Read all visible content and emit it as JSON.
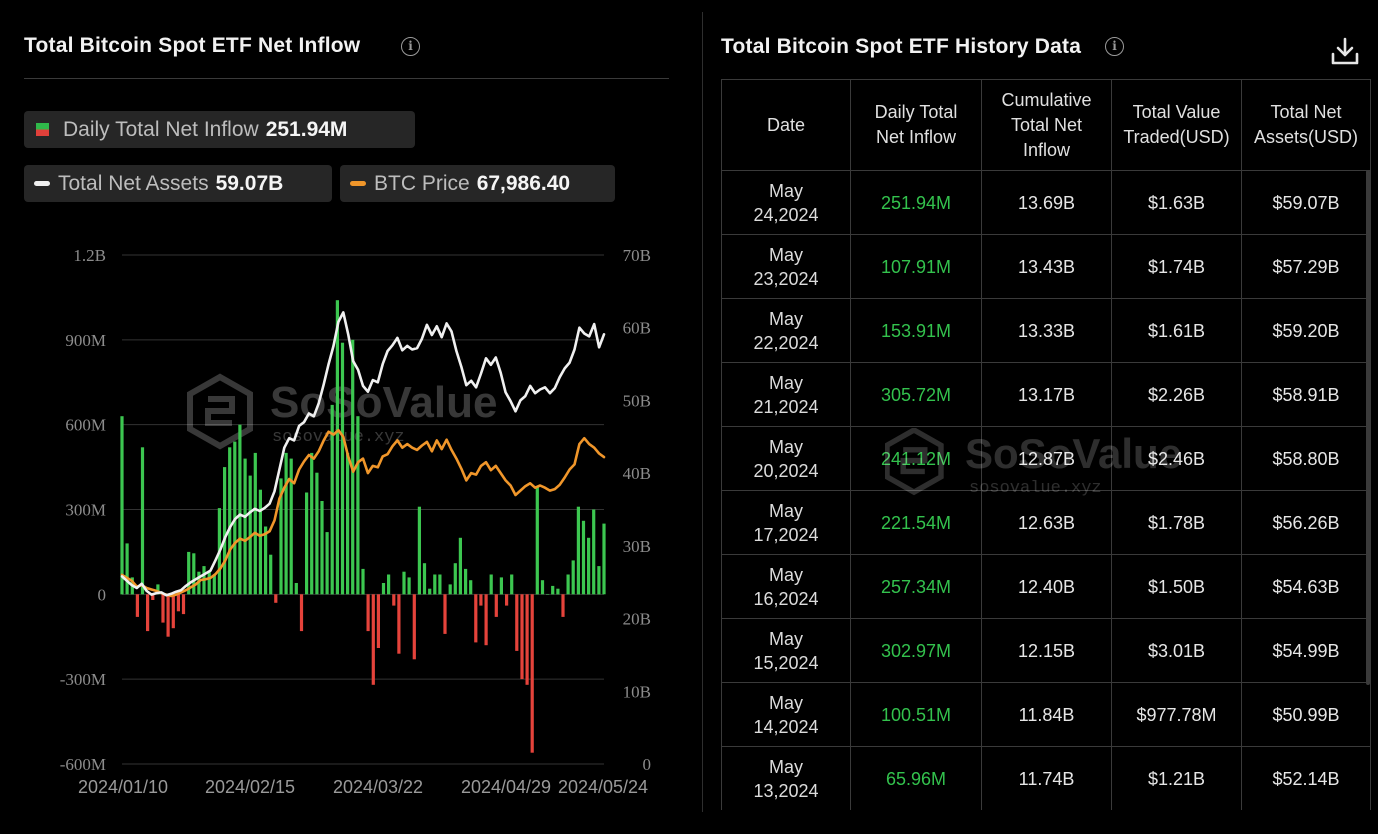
{
  "left_panel": {
    "title": "Total Bitcoin Spot ETF Net Inflow",
    "legend": {
      "inflow_label": "Daily Total Net Inflow",
      "inflow_value": "251.94M",
      "assets_label": "Total Net Assets",
      "assets_value": "59.07B",
      "btc_label": "BTC Price",
      "btc_value": "67,986.40"
    },
    "watermark": {
      "brand": "SoSoValue",
      "domain": "sosovalue.xyz"
    }
  },
  "right_panel": {
    "title": "Total Bitcoin Spot ETF History Data",
    "download_icon": "download-icon",
    "columns": [
      "Date",
      "Daily Total Net Inflow",
      "Cumulative Total Net Inflow",
      "Total Value Traded(USD)",
      "Total Net Assets(USD)"
    ],
    "rows": [
      {
        "date": "May 24,2024",
        "inflow": "251.94M",
        "cumulative": "13.69B",
        "traded": "$1.63B",
        "assets": "$59.07B"
      },
      {
        "date": "May 23,2024",
        "inflow": "107.91M",
        "cumulative": "13.43B",
        "traded": "$1.74B",
        "assets": "$57.29B"
      },
      {
        "date": "May 22,2024",
        "inflow": "153.91M",
        "cumulative": "13.33B",
        "traded": "$1.61B",
        "assets": "$59.20B"
      },
      {
        "date": "May 21,2024",
        "inflow": "305.72M",
        "cumulative": "13.17B",
        "traded": "$2.26B",
        "assets": "$58.91B"
      },
      {
        "date": "May 20,2024",
        "inflow": "241.12M",
        "cumulative": "12.87B",
        "traded": "$2.46B",
        "assets": "$58.80B"
      },
      {
        "date": "May 17,2024",
        "inflow": "221.54M",
        "cumulative": "12.63B",
        "traded": "$1.78B",
        "assets": "$56.26B"
      },
      {
        "date": "May 16,2024",
        "inflow": "257.34M",
        "cumulative": "12.40B",
        "traded": "$1.50B",
        "assets": "$54.63B"
      },
      {
        "date": "May 15,2024",
        "inflow": "302.97M",
        "cumulative": "12.15B",
        "traded": "$3.01B",
        "assets": "$54.99B"
      },
      {
        "date": "May 14,2024",
        "inflow": "100.51M",
        "cumulative": "11.84B",
        "traded": "$977.78M",
        "assets": "$50.99B"
      },
      {
        "date": "May 13,2024",
        "inflow": "65.96M",
        "cumulative": "11.74B",
        "traded": "$1.21B",
        "assets": "$52.14B"
      }
    ]
  },
  "colors": {
    "inflow_positive": "#3cc650",
    "inflow_negative": "#e5433b",
    "assets_line": "#f0f0f0",
    "btc_line": "#f0962a",
    "table_green": "#33c24d"
  },
  "chart_data": {
    "type": "bar",
    "title": "Total Bitcoin Spot ETF Net Inflow",
    "grid": true,
    "x_tick_labels": [
      "2024/01/10",
      "2024/02/15",
      "2024/03/22",
      "2024/04/29",
      "2024/05/24"
    ],
    "left_axis": {
      "ticks": [
        "1.2B",
        "900M",
        "600M",
        "300M",
        "0",
        "-300M",
        "-600M"
      ],
      "range": [
        -600,
        1200
      ],
      "unit": "M USD"
    },
    "right_axis": {
      "ticks": [
        "70B",
        "60B",
        "50B",
        "40B",
        "30B",
        "20B",
        "10B",
        "0"
      ],
      "range": [
        0,
        70
      ],
      "unit": "B USD"
    },
    "series": [
      {
        "name": "Daily Total Net Inflow",
        "type": "bar",
        "axis": "left",
        "values": [
          630,
          180,
          60,
          -80,
          520,
          -130,
          -20,
          35,
          -100,
          -150,
          -120,
          -60,
          -70,
          150,
          145,
          80,
          100,
          80,
          70,
          305,
          450,
          520,
          540,
          600,
          480,
          420,
          500,
          370,
          240,
          140,
          -30,
          410,
          500,
          480,
          40,
          -130,
          360,
          500,
          430,
          330,
          220,
          670,
          1040,
          890,
          500,
          900,
          630,
          90,
          -130,
          -320,
          -190,
          40,
          70,
          -40,
          -210,
          80,
          60,
          -230,
          310,
          110,
          20,
          70,
          70,
          -140,
          35,
          110,
          200,
          90,
          50,
          -170,
          -40,
          -180,
          70,
          -80,
          60,
          -40,
          70,
          -200,
          -300,
          -320,
          -560,
          380,
          50,
          0,
          30,
          20,
          -80,
          70,
          120,
          310,
          260,
          200,
          300,
          100,
          250
        ]
      },
      {
        "name": "Total Net Assets",
        "type": "line",
        "axis": "right",
        "values": [
          25.8,
          25.2,
          24.6,
          24.2,
          24.8,
          23.8,
          23.3,
          23.5,
          23.6,
          23.2,
          23.4,
          23.7,
          23.9,
          24.5,
          25.0,
          25.4,
          25.8,
          26.2,
          26.6,
          28.0,
          29.5,
          31.2,
          32.6,
          33.7,
          34.3,
          34.0,
          34.6,
          35.1,
          34.8,
          35.2,
          35.8,
          37.5,
          40.5,
          43.5,
          44.8,
          44.5,
          46.5,
          47.0,
          48.2,
          47.8,
          49.6,
          52.2,
          55.0,
          57.5,
          60.8,
          62.1,
          59.1,
          55.4,
          54.2,
          52.0,
          51.2,
          52.8,
          52.5,
          55.0,
          56.8,
          57.6,
          58.6,
          56.9,
          57.5,
          57.0,
          57.2,
          58.5,
          60.4,
          59.0,
          60.2,
          58.7,
          60.6,
          59.5,
          56.8,
          54.6,
          52.1,
          52.7,
          51.8,
          53.7,
          55.8,
          54.9,
          55.9,
          53.8,
          51.1,
          49.9,
          48.5,
          50.0,
          50.6,
          52.0,
          51.0,
          51.5,
          51.8,
          51.0,
          51.7,
          53.2,
          54.4,
          55.2,
          57.0,
          60.0,
          59.2,
          58.8,
          60.5,
          57.3,
          59.1
        ]
      },
      {
        "name": "BTC Price",
        "type": "line",
        "axis": "right",
        "values": [
          26.0,
          25.6,
          25.2,
          24.4,
          24.6,
          24.2,
          24.0,
          23.8,
          23.5,
          23.3,
          23.1,
          23.3,
          23.6,
          23.9,
          24.3,
          24.7,
          25.3,
          25.4,
          25.6,
          26.1,
          26.9,
          28.0,
          29.5,
          30.4,
          31.0,
          30.7,
          31.2,
          31.8,
          31.4,
          31.6,
          32.0,
          33.5,
          36.5,
          38.0,
          39.2,
          38.6,
          40.5,
          41.6,
          42.5,
          42.0,
          43.0,
          44.5,
          45.7,
          45.3,
          45.9,
          45.0,
          42.3,
          40.2,
          41.5,
          42.0,
          40.0,
          41.0,
          40.8,
          42.3,
          42.6,
          43.7,
          44.5,
          43.5,
          44.0,
          43.5,
          43.2,
          43.8,
          44.3,
          43.0,
          44.5,
          43.3,
          44.6,
          43.2,
          42.0,
          40.6,
          39.0,
          40.0,
          39.8,
          41.0,
          41.5,
          40.4,
          41.0,
          40.0,
          39.0,
          38.3,
          37.0,
          37.6,
          38.2,
          38.6,
          38.0,
          38.3,
          38.0,
          37.6,
          37.8,
          38.4,
          39.4,
          40.5,
          41.2,
          44.0,
          44.8,
          44.0,
          43.5,
          42.7,
          42.2
        ]
      }
    ]
  }
}
